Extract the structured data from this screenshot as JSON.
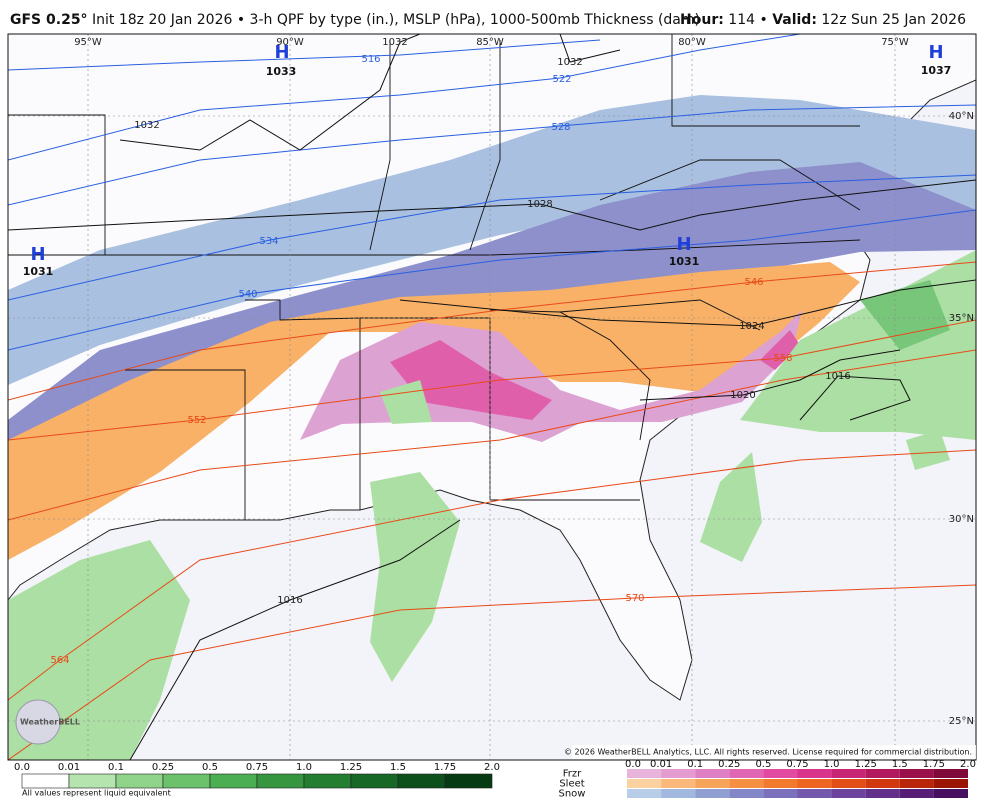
{
  "header": {
    "model": "GFS 0.25°",
    "description": "Init 18z 20 Jan 2026 • 3-h QPF by type (in.), MSLP (hPa), 1000-500mb Thickness (dam)",
    "hour_label": "Hour:",
    "hour": "114",
    "separator": "•",
    "valid_label": "Valid:",
    "valid": "12z Sun 25 Jan 2026"
  },
  "map": {
    "longitudes": [
      "95°W",
      "90°W",
      "85°W",
      "80°W",
      "75°W"
    ],
    "latitudes": [
      "40°N",
      "35°N",
      "30°N",
      "25°N"
    ],
    "highs": [
      {
        "letter": "H",
        "value": "1033"
      },
      {
        "letter": "H",
        "value": "1031"
      },
      {
        "letter": "H",
        "value": "1031"
      },
      {
        "letter": "H",
        "value": "1037"
      }
    ],
    "isobar_labels": [
      "1032",
      "1032",
      "1032",
      "1028",
      "1024",
      "1020",
      "1016",
      "1016"
    ],
    "thickness_labels": [
      "516",
      "522",
      "528",
      "534",
      "540",
      "546",
      "552",
      "558",
      "564",
      "570"
    ],
    "copyright": "© 2026 WeatherBELL Analytics, LLC. All rights reserved. License required for commercial distribution.",
    "logo": "WeatherBELL"
  },
  "legend": {
    "rain": {
      "ticks": [
        "0.0",
        "0.01",
        "0.1",
        "0.25",
        "0.5",
        "0.75",
        "1.0",
        "1.25",
        "1.5",
        "1.75",
        "2.0"
      ],
      "colors": [
        "#ffffff",
        "#b5e4ae",
        "#8fd48a",
        "#6cc26b",
        "#4cae52",
        "#35963f",
        "#237e31",
        "#176726",
        "#0d501c",
        "#063a12"
      ],
      "note": "All values represent liquid equivalent"
    },
    "mixed": {
      "ticks": [
        "0.0",
        "0.01",
        "0.1",
        "0.25",
        "0.5",
        "0.75",
        "1.0",
        "1.25",
        "1.5",
        "1.75",
        "2.0"
      ],
      "types": [
        {
          "name": "Frzr",
          "colors": [
            "#e8b4dc",
            "#e39bd0",
            "#de7fc3",
            "#e065b3",
            "#e24aa1",
            "#d8348c",
            "#c72674",
            "#b3195f",
            "#9a104b",
            "#7f0a39"
          ]
        },
        {
          "name": "Sleet",
          "colors": [
            "#fbd1a0",
            "#fab97b",
            "#f7a45b",
            "#f58f42",
            "#f27a2e",
            "#ee6421",
            "#e34d17",
            "#d2380f",
            "#b82508",
            "#9b1503"
          ]
        },
        {
          "name": "Snow",
          "colors": [
            "#b8cde8",
            "#a3b8de",
            "#8f9fd2",
            "#8387c7",
            "#7a70bb",
            "#7358ac",
            "#6b439c",
            "#62308a",
            "#561e76",
            "#460f60"
          ]
        }
      ]
    }
  }
}
